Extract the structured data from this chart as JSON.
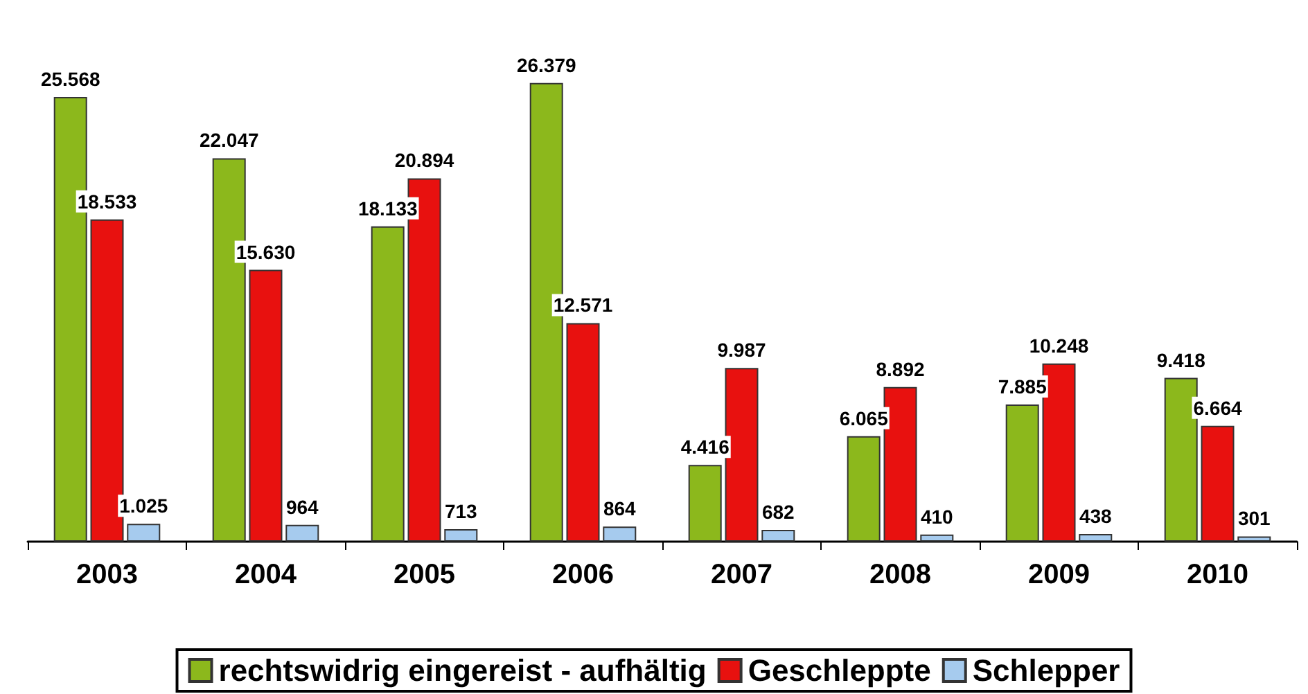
{
  "chart_data": {
    "type": "bar",
    "categories": [
      "2003",
      "2004",
      "2005",
      "2006",
      "2007",
      "2008",
      "2009",
      "2010"
    ],
    "series": [
      {
        "name": "rechtswidrig eingereist - aufhältig",
        "color": "#8cb81c",
        "values": [
          25568,
          22047,
          18133,
          26379,
          4416,
          6065,
          7885,
          9418
        ],
        "value_labels": [
          "25.568",
          "22.047",
          "18.133",
          "26.379",
          "4.416",
          "6.065",
          "7.885",
          "9.418"
        ]
      },
      {
        "name": "Geschleppte",
        "color": "#e8110f",
        "values": [
          18533,
          15630,
          20894,
          12571,
          9987,
          8892,
          10248,
          6664
        ],
        "value_labels": [
          "18.533",
          "15.630",
          "20.894",
          "12.571",
          "9.987",
          "8.892",
          "10.248",
          "6.664"
        ]
      },
      {
        "name": "Schlepper",
        "color": "#a6cbee",
        "values": [
          1025,
          964,
          713,
          864,
          682,
          410,
          438,
          301
        ],
        "value_labels": [
          "1.025",
          "964",
          "713",
          "864",
          "682",
          "410",
          "438",
          "301"
        ]
      }
    ],
    "legend": "bottom",
    "grid": false
  }
}
